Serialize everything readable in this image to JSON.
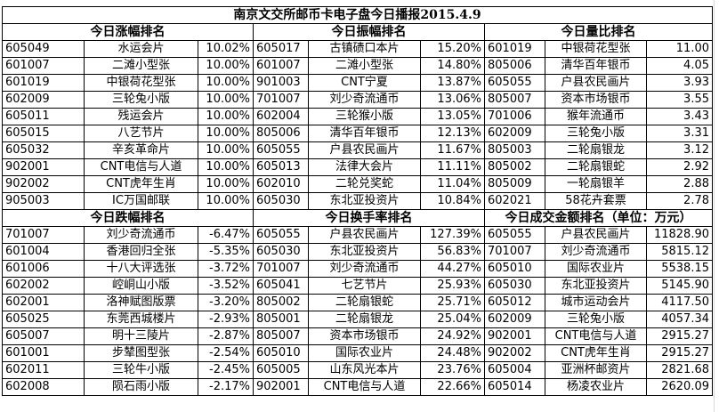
{
  "title": "南京文交所邮币卡电子盘今日播报2015.4.9",
  "sections_top": [
    {
      "header": "今日涨幅排名",
      "rows": [
        [
          "605049",
          "水运会片",
          "10.02%"
        ],
        [
          "601007",
          "二滩小型张",
          "10.00%"
        ],
        [
          "601019",
          "中银荷花型张",
          "10.00%"
        ],
        [
          "602009",
          "三轮兔小版",
          "10.00%"
        ],
        [
          "605011",
          "残运会片",
          "10.00%"
        ],
        [
          "605015",
          "八艺节片",
          "10.00%"
        ],
        [
          "605032",
          "辛亥革命片",
          "10.00%"
        ],
        [
          "902001",
          "CNT电信与人道",
          "10.00%"
        ],
        [
          "902002",
          "CNT虎年生肖",
          "10.00%"
        ],
        [
          "905003",
          "IC万国邮联",
          "10.00%"
        ]
      ]
    },
    {
      "header": "今日振幅排名",
      "rows": [
        [
          "605017",
          "古镇碛口本片",
          "15.20%"
        ],
        [
          "601007",
          "二滩小型张",
          "14.80%"
        ],
        [
          "901003",
          "CNT宁夏",
          "13.87%"
        ],
        [
          "701007",
          "刘少奇流通币",
          "13.06%"
        ],
        [
          "602004",
          "三轮猴小版",
          "13.05%"
        ],
        [
          "805006",
          "清华百年银币",
          "12.13%"
        ],
        [
          "605055",
          "户县农民画片",
          "11.67%"
        ],
        [
          "605013",
          "法律大会片",
          "11.11%"
        ],
        [
          "602010",
          "二轮兑奖蛇",
          "11.04%"
        ],
        [
          "605030",
          "东北亚投资片",
          "10.84%"
        ]
      ]
    },
    {
      "header": "今日量比排名",
      "rows": [
        [
          "601019",
          "中银荷花型张",
          "11.00"
        ],
        [
          "805006",
          "清华百年银币",
          "4.05"
        ],
        [
          "605055",
          "户县农民画片",
          "3.93"
        ],
        [
          "805007",
          "资本市场银币",
          "3.55"
        ],
        [
          "701006",
          "猴年流通币",
          "3.43"
        ],
        [
          "602009",
          "三轮兔小版",
          "3.31"
        ],
        [
          "805003",
          "二轮扇银龙",
          "3.12"
        ],
        [
          "805002",
          "二轮扇银蛇",
          "2.92"
        ],
        [
          "805009",
          "一轮扇银羊",
          "2.88"
        ],
        [
          "602021",
          "58花卉套票",
          "2.78"
        ]
      ]
    }
  ],
  "sections_bottom": [
    {
      "header": "今日跌幅排名",
      "rows": [
        [
          "701007",
          "刘少奇流通币",
          "-6.47%"
        ],
        [
          "601004",
          "香港回归全张",
          "-5.35%"
        ],
        [
          "601006",
          "十八大评选张",
          "-3.72%"
        ],
        [
          "602002",
          "崆峒山小版",
          "-3.52%"
        ],
        [
          "602001",
          "洛神赋图版票",
          "-3.20%"
        ],
        [
          "605025",
          "东莞西城楼片",
          "-2.93%"
        ],
        [
          "605007",
          "明十三陵片",
          "-2.87%"
        ],
        [
          "601001",
          "步辇图型张",
          "-2.54%"
        ],
        [
          "602011",
          "三轮牛小版",
          "-2.45%"
        ],
        [
          "602008",
          "陨石雨小版",
          "-2.17%"
        ]
      ]
    },
    {
      "header": "今日换手率排名",
      "rows": [
        [
          "605055",
          "户县农民画片",
          "127.39%"
        ],
        [
          "605030",
          "东北亚投资片",
          "56.83%"
        ],
        [
          "701007",
          "刘少奇流通币",
          "44.27%"
        ],
        [
          "605041",
          "七艺节片",
          "25.93%"
        ],
        [
          "805002",
          "二轮扇银蛇",
          "25.71%"
        ],
        [
          "805001",
          "二轮扇银龙",
          "25.04%"
        ],
        [
          "805007",
          "资本市场银币",
          "24.92%"
        ],
        [
          "605010",
          "国际农业片",
          "24.48%"
        ],
        [
          "605005",
          "山东风光本片",
          "23.76%"
        ],
        [
          "902001",
          "CNT电信与人道",
          "22.66%"
        ]
      ]
    },
    {
      "header": "今日成交金额排名（单位：万元）",
      "rows": [
        [
          "605055",
          "户县农民画片",
          "11828.90"
        ],
        [
          "701007",
          "刘少奇流通币",
          "5815.12"
        ],
        [
          "605010",
          "国际农业片",
          "5538.15"
        ],
        [
          "605030",
          "东北亚投资片",
          "5145.90"
        ],
        [
          "605012",
          "城市运动会片",
          "4117.50"
        ],
        [
          "602009",
          "三轮兔小版",
          "4057.34"
        ],
        [
          "902001",
          "CNT电信与人道",
          "2915.27"
        ],
        [
          "902002",
          "CNT虎年生肖",
          "2915.27"
        ],
        [
          "605004",
          "亚洲杯邮资片",
          "2821.68"
        ],
        [
          "605014",
          "杨凌农业片",
          "2620.09"
        ]
      ]
    }
  ]
}
